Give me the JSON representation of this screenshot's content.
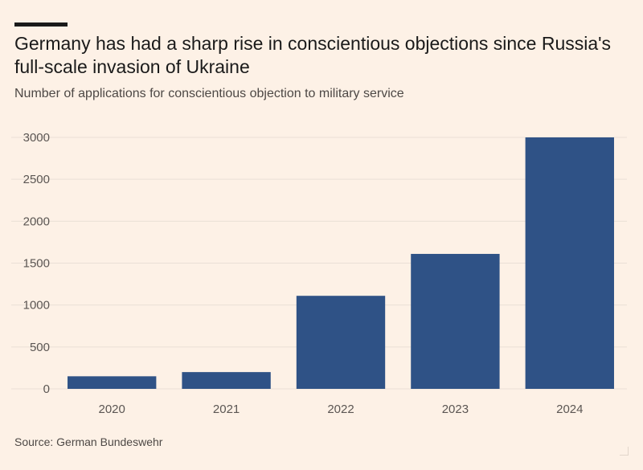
{
  "header": {
    "title": "Germany has had a sharp rise in conscientious objections since Russia's full-scale invasion of Ukraine",
    "subtitle": "Number of applications for conscientious objection to military service"
  },
  "footer": {
    "source": "Source: German Bundeswehr"
  },
  "colors": {
    "background": "#fdf1e6",
    "bar": "#2f5286",
    "grid": "#eadfd6",
    "axis_text": "#5b5653"
  },
  "chart_data": {
    "type": "bar",
    "title": "Germany has had a sharp rise in conscientious objections since Russia's full-scale invasion of Ukraine",
    "subtitle": "Number of applications for conscientious objection to military service",
    "categories": [
      "2020",
      "2021",
      "2022",
      "2023",
      "2024"
    ],
    "values": [
      150,
      200,
      1110,
      1610,
      3000
    ],
    "yticks": [
      "0",
      "500",
      "1000",
      "1500",
      "2000",
      "2500",
      "3000"
    ],
    "ylim": [
      0,
      3000
    ],
    "xlabel": "",
    "ylabel": "",
    "grid": true,
    "legend": "none"
  }
}
